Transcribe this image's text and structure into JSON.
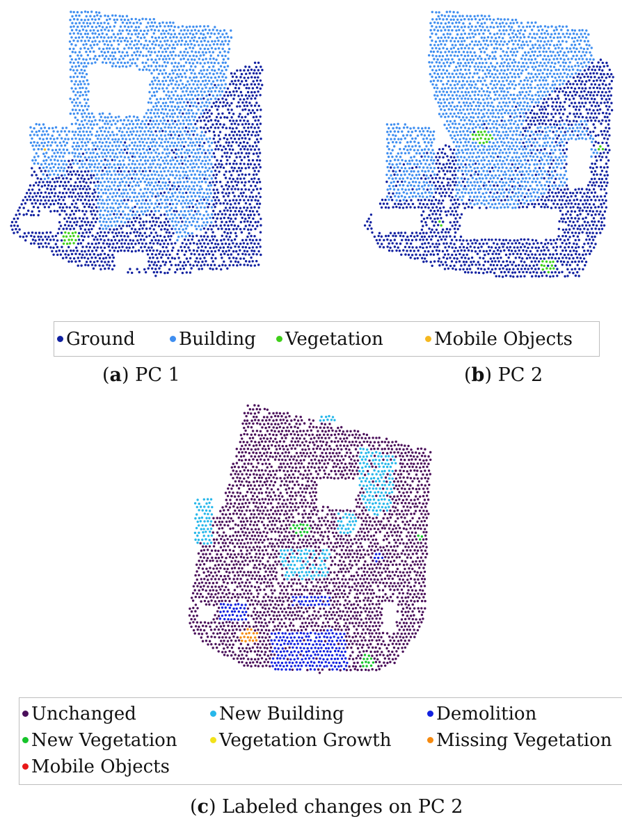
{
  "panels": [
    {
      "id": "pc1",
      "caption_letter": "a",
      "caption_text": "PC 1"
    },
    {
      "id": "pc2",
      "caption_letter": "b",
      "caption_text": "PC 2"
    },
    {
      "id": "pc3",
      "caption_letter": "c",
      "caption_text": "Labeled changes on PC 2"
    }
  ],
  "legend_top": [
    {
      "label": "Ground",
      "color": "#1020a0"
    },
    {
      "label": "Building",
      "color": "#3f8ef0"
    },
    {
      "label": "Vegetation",
      "color": "#3fcf1a"
    },
    {
      "label": "Mobile Objects",
      "color": "#f5b820"
    }
  ],
  "legend_bottom": [
    {
      "label": "Unchanged",
      "color": "#4a0f5a"
    },
    {
      "label": "New Building",
      "color": "#27b7ea"
    },
    {
      "label": "Demolition",
      "color": "#1221e0"
    },
    {
      "label": "New Vegetation",
      "color": "#16c42a"
    },
    {
      "label": "Vegetation Growth",
      "color": "#f2e21a"
    },
    {
      "label": "Missing Vegetation",
      "color": "#f58a10"
    },
    {
      "label": "Mobile Objects",
      "color": "#e81818"
    }
  ]
}
